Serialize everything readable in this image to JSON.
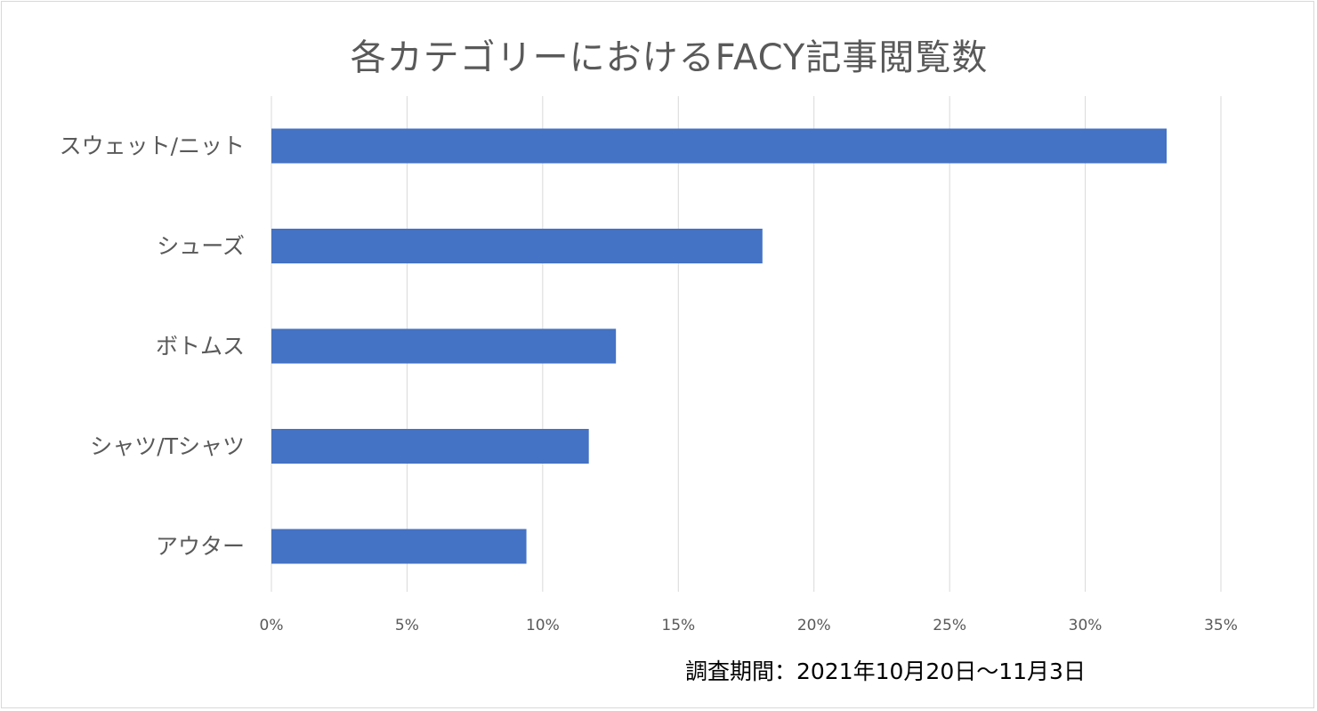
{
  "chart_data": {
    "type": "bar",
    "orientation": "horizontal",
    "title": "各カテゴリーにおけるFACY記事閲覧数",
    "categories": [
      "スウェット/ニット",
      "シューズ",
      "ボトムス",
      "シャツ/Tシャツ",
      "アウター"
    ],
    "values": [
      33.0,
      18.1,
      12.7,
      11.7,
      9.4
    ],
    "value_unit": "%",
    "xlim": [
      0,
      35
    ],
    "x_ticks": [
      0,
      5,
      10,
      15,
      20,
      25,
      30,
      35
    ],
    "x_tick_labels": [
      "0%",
      "5%",
      "10%",
      "15%",
      "20%",
      "25%",
      "30%",
      "35%"
    ],
    "xlabel": "",
    "ylabel": "",
    "grid": true,
    "legend": "none",
    "bar_color": "#4472c4",
    "gridline_color": "#d9d9d9",
    "note": "調査期間：2021年10月20日～11月3日"
  }
}
